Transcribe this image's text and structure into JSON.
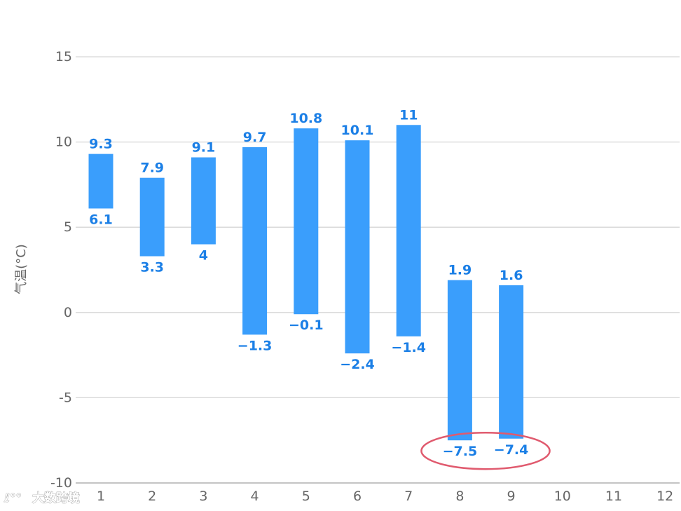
{
  "chart_data": {
    "type": "bar",
    "subtype": "floating-range",
    "ylabel": "气温(°C)",
    "ylim": [
      -10,
      15
    ],
    "yticks": [
      15,
      10,
      5,
      0,
      -5,
      -10
    ],
    "ytick_labels": [
      "15",
      "10",
      "5",
      "0",
      "-5",
      "-10"
    ],
    "categories": [
      "1",
      "2",
      "3",
      "4",
      "5",
      "6",
      "7",
      "8",
      "9",
      "10",
      "11",
      "12"
    ],
    "high": [
      9.3,
      7.9,
      9.1,
      9.7,
      10.8,
      10.1,
      11,
      1.9,
      1.6,
      null,
      null,
      null
    ],
    "low": [
      6.1,
      3.3,
      4,
      -1.3,
      -0.1,
      -2.4,
      -1.4,
      -7.5,
      -7.4,
      null,
      null,
      null
    ],
    "high_labels": [
      "9.3",
      "7.9",
      "9.1",
      "9.7",
      "10.8",
      "10.1",
      "11",
      "1.9",
      "1.6"
    ],
    "low_labels": [
      "6.1",
      "3.3",
      "4",
      "−1.3",
      "−0.1",
      "−2.4",
      "−1.4",
      "−7.5",
      "−7.4"
    ],
    "grid": true,
    "bar_color": "#3a9efc",
    "label_color": "#1b7fe6",
    "highlight": {
      "categories": [
        "8",
        "9"
      ],
      "color": "#e05a6e"
    }
  },
  "watermark": "大数跨境"
}
